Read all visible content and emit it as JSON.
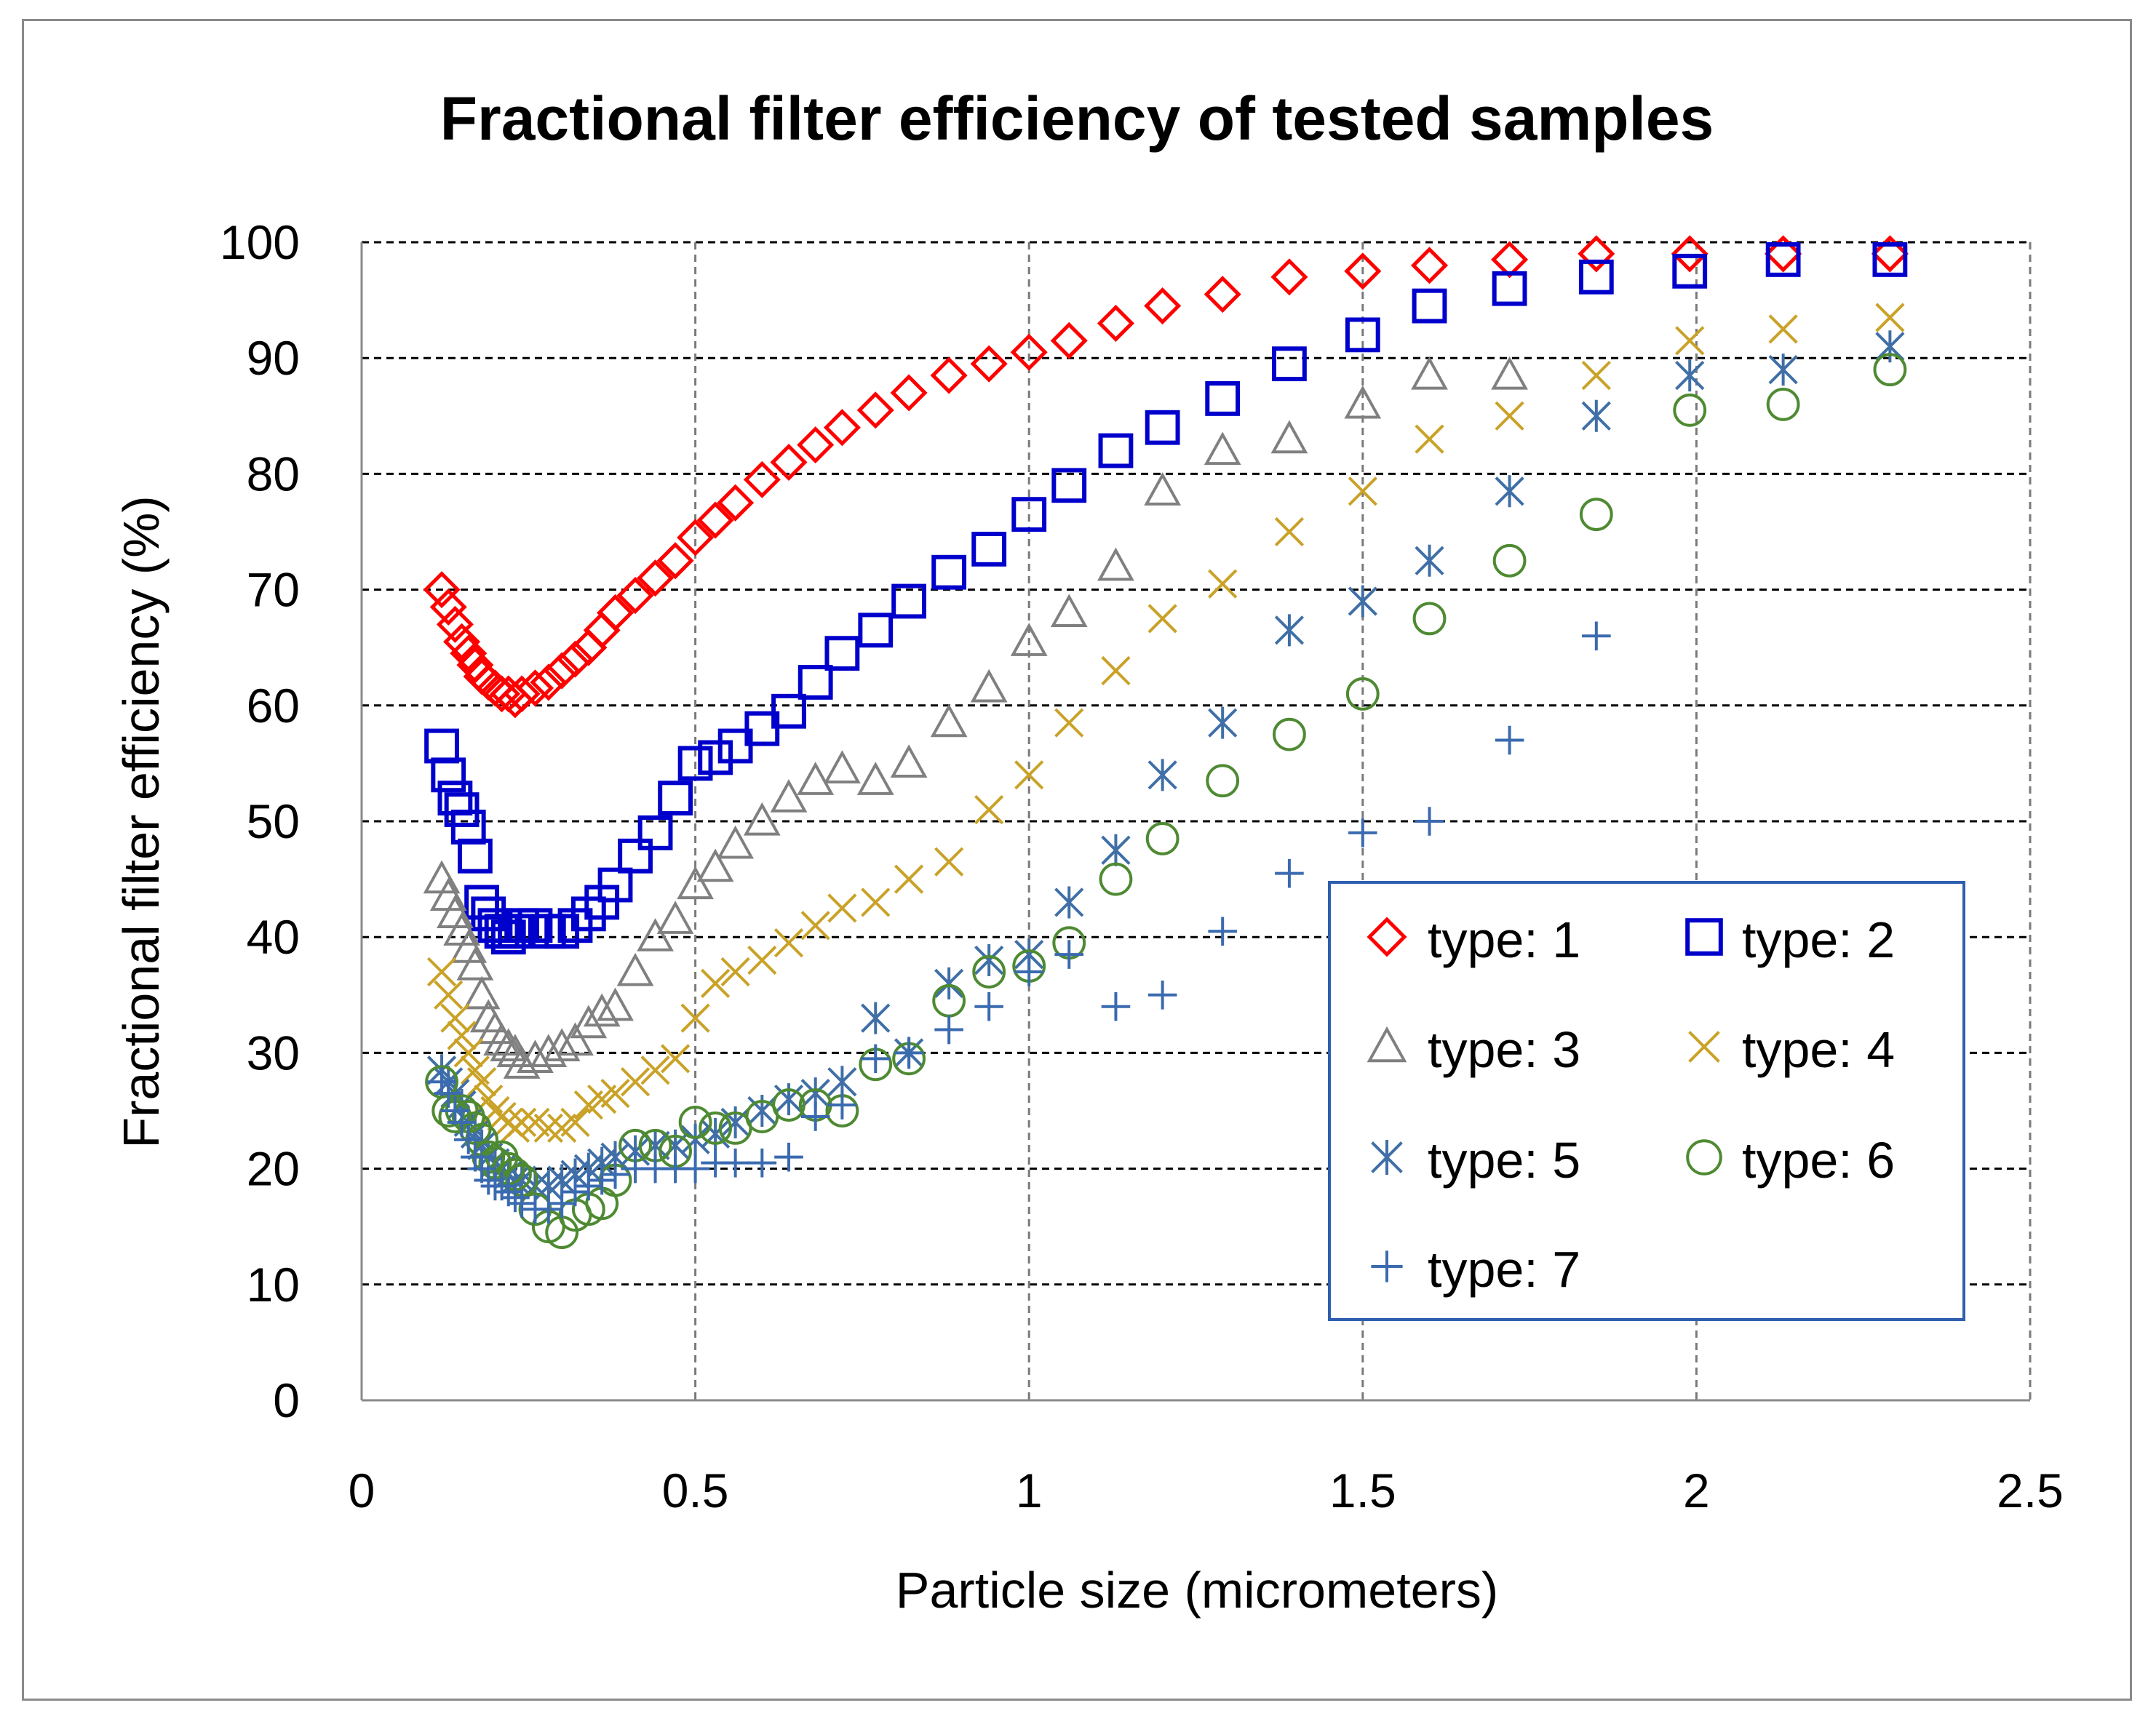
{
  "chart_data": {
    "type": "scatter",
    "title": "Fractional filter efficiency of tested samples",
    "xlabel": "Particle size (micrometers)",
    "ylabel": "Fractional filter efficiency (%)",
    "xlim": [
      0,
      2.5
    ],
    "ylim": [
      0,
      100
    ],
    "xticks": [
      "0",
      "0.5",
      "1",
      "1.5",
      "2",
      "2.5"
    ],
    "yticks": [
      "0",
      "10",
      "20",
      "30",
      "40",
      "50",
      "60",
      "70",
      "80",
      "90",
      "100"
    ],
    "grid": "dashed",
    "legend_position": "bottom-right",
    "series": [
      {
        "name": "type: 1",
        "marker": "diamond",
        "color": "#ff0000",
        "x": [
          0.12,
          0.13,
          0.14,
          0.15,
          0.16,
          0.17,
          0.18,
          0.19,
          0.2,
          0.21,
          0.22,
          0.23,
          0.24,
          0.26,
          0.28,
          0.3,
          0.32,
          0.34,
          0.36,
          0.38,
          0.41,
          0.44,
          0.47,
          0.5,
          0.53,
          0.56,
          0.6,
          0.64,
          0.68,
          0.72,
          0.77,
          0.82,
          0.88,
          0.94,
          1.0,
          1.06,
          1.13,
          1.2,
          1.29,
          1.39,
          1.5,
          1.6,
          1.72,
          1.85,
          1.99,
          2.13,
          2.29
        ],
        "y": [
          70,
          68.5,
          67,
          65.5,
          64.5,
          63.5,
          62.5,
          62,
          61.5,
          61,
          61,
          60.5,
          61,
          61.5,
          62,
          63,
          64,
          65,
          66.5,
          68,
          69.5,
          71,
          72.5,
          74.5,
          76,
          77.5,
          79.5,
          81,
          82.5,
          84,
          85.5,
          87,
          88.5,
          89.5,
          90.5,
          91.5,
          93,
          94.5,
          95.5,
          97,
          97.5,
          98,
          98.5,
          99,
          99,
          99,
          99
        ]
      },
      {
        "name": "type: 2",
        "marker": "square",
        "color": "#0000cc",
        "x": [
          0.12,
          0.13,
          0.14,
          0.15,
          0.16,
          0.17,
          0.18,
          0.19,
          0.2,
          0.21,
          0.22,
          0.23,
          0.24,
          0.26,
          0.28,
          0.3,
          0.32,
          0.34,
          0.36,
          0.38,
          0.41,
          0.44,
          0.47,
          0.5,
          0.53,
          0.56,
          0.6,
          0.64,
          0.68,
          0.72,
          0.77,
          0.82,
          0.88,
          0.94,
          1.0,
          1.06,
          1.13,
          1.2,
          1.29,
          1.39,
          1.5,
          1.6,
          1.72,
          1.85,
          1.99,
          2.13,
          2.29
        ],
        "y": [
          56.5,
          54,
          52,
          51,
          49.5,
          47,
          43,
          42,
          41,
          40.5,
          40,
          40.5,
          41,
          41,
          40.5,
          40.5,
          41,
          42,
          43,
          44.5,
          47,
          49,
          52,
          55,
          55.5,
          56.5,
          58,
          59.5,
          62,
          64.5,
          66.5,
          69,
          71.5,
          73.5,
          76.5,
          79,
          82,
          84,
          86.5,
          89.5,
          92,
          94.5,
          96,
          97,
          97.5,
          98.5,
          98.5
        ]
      },
      {
        "name": "type: 3",
        "marker": "triangle",
        "color": "#808080",
        "x": [
          0.12,
          0.13,
          0.14,
          0.15,
          0.16,
          0.17,
          0.18,
          0.19,
          0.2,
          0.21,
          0.22,
          0.23,
          0.24,
          0.26,
          0.28,
          0.3,
          0.32,
          0.34,
          0.36,
          0.38,
          0.41,
          0.44,
          0.47,
          0.5,
          0.53,
          0.56,
          0.6,
          0.64,
          0.68,
          0.72,
          0.77,
          0.82,
          0.88,
          0.94,
          1.0,
          1.06,
          1.13,
          1.2,
          1.29,
          1.39,
          1.5,
          1.6,
          1.72
        ],
        "y": [
          45,
          43.5,
          42,
          40.5,
          39,
          37.5,
          35,
          33,
          32,
          31,
          30.5,
          30,
          29,
          29.5,
          30,
          30.5,
          31,
          32.5,
          33.5,
          34,
          37,
          40,
          41.5,
          44.5,
          46,
          48,
          50,
          52,
          53.5,
          54.5,
          53.5,
          55,
          58.5,
          61.5,
          65.5,
          68,
          72,
          78.5,
          82,
          83,
          86,
          88.5,
          88.5
        ]
      },
      {
        "name": "type: 4",
        "marker": "x",
        "color": "#c9a227",
        "x": [
          0.12,
          0.13,
          0.14,
          0.15,
          0.16,
          0.17,
          0.18,
          0.19,
          0.2,
          0.21,
          0.22,
          0.23,
          0.24,
          0.26,
          0.28,
          0.3,
          0.32,
          0.34,
          0.36,
          0.38,
          0.41,
          0.44,
          0.47,
          0.5,
          0.53,
          0.56,
          0.6,
          0.64,
          0.68,
          0.72,
          0.77,
          0.82,
          0.88,
          0.94,
          1.0,
          1.06,
          1.13,
          1.2,
          1.29,
          1.39,
          1.5,
          1.6,
          1.72,
          1.85,
          1.99,
          2.13,
          2.29
        ],
        "y": [
          37,
          35,
          33,
          31.5,
          30,
          28.5,
          27.5,
          26,
          25,
          24.5,
          24,
          23.5,
          24,
          24,
          23.5,
          23.5,
          24,
          25.5,
          26,
          26.5,
          27.5,
          28.5,
          29.5,
          33,
          36,
          37,
          38,
          39.5,
          41,
          42.5,
          43,
          45,
          46.5,
          51,
          54,
          58.5,
          63,
          67.5,
          70.5,
          75,
          78.5,
          83,
          85,
          88.5,
          91.5,
          92.5,
          93.5
        ]
      },
      {
        "name": "type: 5",
        "marker": "asterisk",
        "color": "#3f6fa6",
        "x": [
          0.12,
          0.13,
          0.14,
          0.15,
          0.16,
          0.17,
          0.18,
          0.19,
          0.2,
          0.21,
          0.22,
          0.23,
          0.24,
          0.26,
          0.28,
          0.3,
          0.32,
          0.34,
          0.36,
          0.38,
          0.41,
          0.44,
          0.47,
          0.5,
          0.53,
          0.56,
          0.6,
          0.64,
          0.68,
          0.72,
          0.77,
          0.82,
          0.88,
          0.94,
          1.0,
          1.06,
          1.13,
          1.2,
          1.29,
          1.39,
          1.5,
          1.6,
          1.72,
          1.85,
          1.99,
          2.13,
          2.29
        ],
        "y": [
          28.5,
          27.5,
          26.5,
          25.5,
          24,
          23,
          22,
          21,
          20.5,
          20,
          19.5,
          19,
          19,
          18.5,
          18.5,
          19,
          19.5,
          20,
          20.5,
          21,
          21.5,
          22,
          22,
          22.5,
          23,
          24,
          25,
          26,
          26.5,
          27.5,
          33,
          30,
          36,
          38,
          38.5,
          43,
          47.5,
          54,
          58.5,
          66.5,
          69,
          72.5,
          78.5,
          85,
          88.5,
          89,
          91
        ]
      },
      {
        "name": "type: 6",
        "marker": "circle",
        "color": "#4e8a32",
        "x": [
          0.12,
          0.13,
          0.14,
          0.15,
          0.16,
          0.17,
          0.18,
          0.19,
          0.2,
          0.21,
          0.22,
          0.23,
          0.24,
          0.26,
          0.28,
          0.3,
          0.32,
          0.34,
          0.36,
          0.38,
          0.41,
          0.44,
          0.47,
          0.5,
          0.53,
          0.56,
          0.6,
          0.64,
          0.68,
          0.72,
          0.77,
          0.82,
          0.88,
          0.94,
          1.0,
          1.06,
          1.13,
          1.2,
          1.29,
          1.39,
          1.5,
          1.6,
          1.72,
          1.85,
          1.99,
          2.13,
          2.29
        ],
        "y": [
          27.5,
          25,
          24.5,
          25,
          24.5,
          23.5,
          22.5,
          21,
          20.5,
          21,
          20,
          19.5,
          19,
          16.5,
          15,
          14.5,
          16,
          16.5,
          17,
          19,
          22,
          22,
          21.5,
          24,
          23.5,
          23.5,
          24.5,
          25.5,
          25.5,
          25,
          29,
          29.5,
          34.5,
          37,
          37.5,
          39.5,
          45,
          48.5,
          53.5,
          57.5,
          61,
          67.5,
          72.5,
          76.5,
          85.5,
          86,
          89
        ]
      },
      {
        "name": "type: 7",
        "marker": "plus",
        "color": "#3a6ab0",
        "x": [
          0.12,
          0.13,
          0.14,
          0.15,
          0.16,
          0.17,
          0.18,
          0.19,
          0.2,
          0.21,
          0.22,
          0.23,
          0.24,
          0.26,
          0.28,
          0.3,
          0.32,
          0.34,
          0.36,
          0.38,
          0.41,
          0.44,
          0.47,
          0.5,
          0.53,
          0.56,
          0.6,
          0.64,
          0.68,
          0.72,
          0.77,
          0.82,
          0.88,
          0.94,
          1.0,
          1.06,
          1.13,
          1.2,
          1.29,
          1.39,
          1.5,
          1.6,
          1.72,
          1.85
        ],
        "y": [
          27.5,
          26.5,
          25,
          24,
          22.5,
          21,
          20,
          19,
          18.5,
          18.5,
          18,
          17.5,
          17,
          16.5,
          16.5,
          17,
          18,
          18.5,
          19,
          19.5,
          20,
          20,
          20,
          20,
          20.5,
          20.5,
          20.5,
          21,
          24.5,
          25.5,
          29.5,
          30,
          32,
          34,
          37,
          38.5,
          34,
          35,
          40.5,
          45.5,
          49,
          50,
          57,
          66
        ]
      }
    ]
  }
}
